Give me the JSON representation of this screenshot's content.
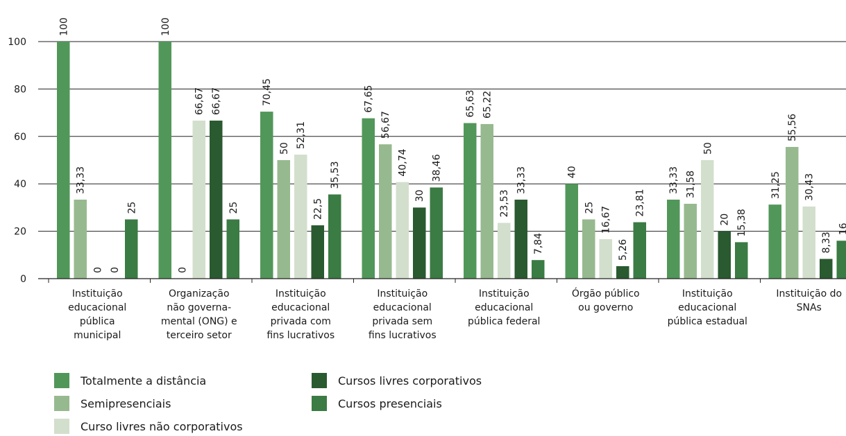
{
  "chart_data": {
    "type": "bar",
    "categories": [
      "Instituição educacional pública municipal",
      "Organização não governa-mental (ONG) e terceiro setor",
      "Instituição educacional privada com fins lucrativos",
      "Instituição educacional privada sem fins lucrativos",
      "Instituição educacional pública federal",
      "Órgão público ou governo",
      "Instituição educacional pública estadual",
      "Instituição do SNAs"
    ],
    "category_lines": [
      [
        "Instituição",
        "educacional",
        "pública",
        "municipal"
      ],
      [
        "Organização",
        "não governa-",
        "mental (ONG) e",
        "terceiro setor"
      ],
      [
        "Instituição",
        "educacional",
        "privada com",
        "fins lucrativos"
      ],
      [
        "Instituição",
        "educacional",
        "privada sem",
        "fins lucrativos"
      ],
      [
        "Instituição",
        "educacional",
        "pública federal"
      ],
      [
        "Órgão público",
        "ou governo"
      ],
      [
        "Instituição",
        "educacional",
        "pública estadual"
      ],
      [
        "Instituição do",
        "SNAs"
      ]
    ],
    "series": [
      {
        "name": "Totalmente a distância",
        "color": "#52975a",
        "values": [
          100,
          100,
          70.45,
          67.65,
          65.63,
          40,
          33.33,
          31.25
        ],
        "labels": [
          "100",
          "100",
          "70,45",
          "67,65",
          "65,63",
          "40",
          "33,33",
          "31,25"
        ]
      },
      {
        "name": "Semipresenciais",
        "color": "#97b98f",
        "values": [
          33.33,
          0,
          50,
          56.67,
          65.22,
          25,
          31.58,
          55.56
        ],
        "labels": [
          "33,33",
          "0",
          "50",
          "56,67",
          "65,22",
          "25",
          "31,58",
          "55,56"
        ]
      },
      {
        "name": "Curso livres não corporativos",
        "color": "#d3dfcd",
        "values": [
          0,
          66.67,
          52.31,
          40.74,
          23.53,
          16.67,
          50,
          30.43
        ],
        "labels": [
          "0",
          "66,67",
          "52,31",
          "40,74",
          "23,53",
          "16,67",
          "50",
          "30,43"
        ]
      },
      {
        "name": "Cursos livres corporativos",
        "color": "#2a5a30",
        "values": [
          0,
          66.67,
          22.5,
          30,
          33.33,
          5.26,
          20,
          8.33
        ],
        "labels": [
          "0",
          "66,67",
          "22,5",
          "30",
          "33,33",
          "5,26",
          "20",
          "8,33"
        ]
      },
      {
        "name": "Cursos presenciais",
        "color": "#3b7b44",
        "values": [
          25,
          25,
          35.53,
          38.46,
          7.84,
          23.81,
          15.38,
          16
        ],
        "labels": [
          "25",
          "25",
          "35,53",
          "38,46",
          "7,84",
          "23,81",
          "15,38",
          "16"
        ]
      }
    ],
    "yticks": [
      "0",
      "20",
      "40",
      "60",
      "80",
      "100"
    ],
    "ylim": [
      0,
      100
    ],
    "grid": true,
    "legend_position": "bottom-left"
  },
  "legend": {
    "items": [
      {
        "label": "Totalmente a distância",
        "color": "#52975a"
      },
      {
        "label": "Semipresenciais",
        "color": "#97b98f"
      },
      {
        "label": "Curso livres não corporativos",
        "color": "#d3dfcd"
      },
      {
        "label": "Cursos livres corporativos",
        "color": "#2a5a30"
      },
      {
        "label": "Cursos presenciais",
        "color": "#3b7b44"
      }
    ]
  }
}
